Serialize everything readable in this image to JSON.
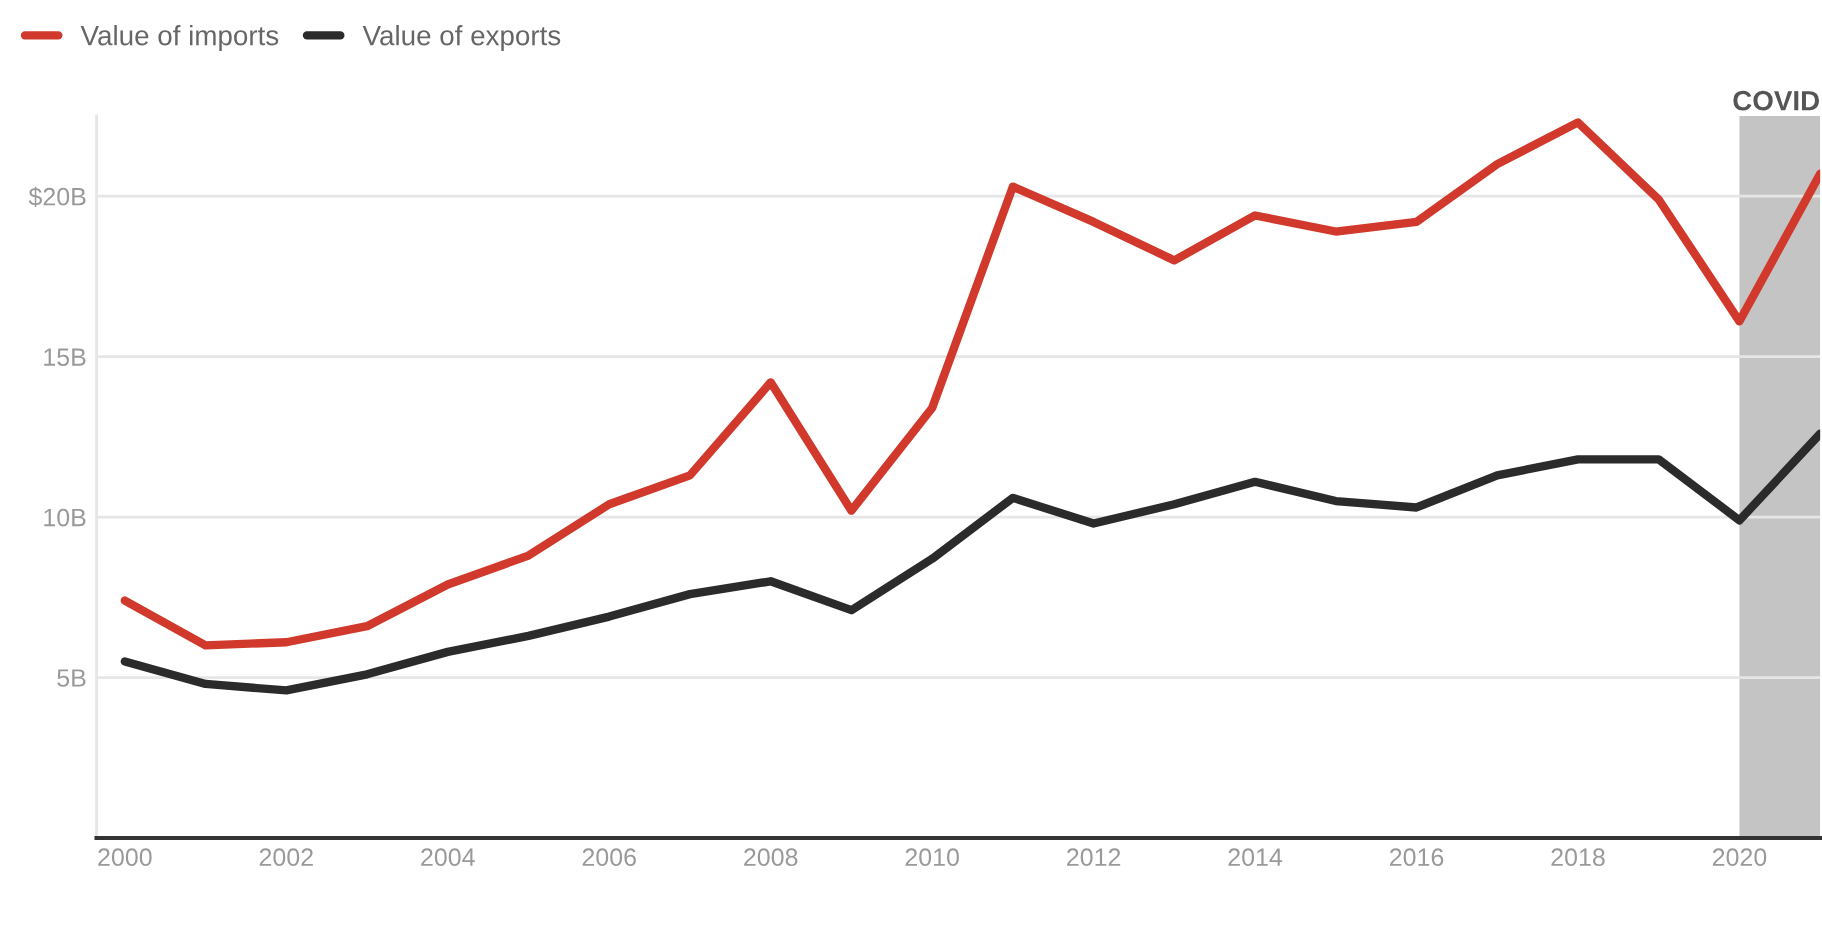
{
  "chart_data": {
    "type": "line",
    "x": [
      2000,
      2001,
      2002,
      2003,
      2004,
      2005,
      2006,
      2007,
      2008,
      2009,
      2010,
      2011,
      2012,
      2013,
      2014,
      2015,
      2016,
      2017,
      2018,
      2019,
      2020,
      2021
    ],
    "series": [
      {
        "name": "Value of imports",
        "color": "#d0392b",
        "values": [
          7.4,
          6.0,
          6.1,
          6.6,
          7.9,
          8.8,
          10.4,
          11.3,
          14.2,
          10.2,
          13.4,
          20.3,
          19.2,
          18.0,
          19.4,
          18.9,
          19.2,
          21.0,
          22.3,
          19.9,
          16.1,
          20.7
        ]
      },
      {
        "name": "Value of exports",
        "color": "#2b2b2b",
        "values": [
          5.5,
          4.8,
          4.6,
          5.1,
          5.8,
          6.3,
          6.9,
          7.6,
          8.0,
          7.1,
          8.7,
          10.6,
          9.8,
          10.4,
          11.1,
          10.5,
          10.3,
          11.3,
          11.8,
          11.8,
          9.9,
          12.6
        ]
      }
    ],
    "xlim": [
      1999.65,
      2021
    ],
    "xticks": [
      2000,
      2002,
      2004,
      2006,
      2008,
      2010,
      2012,
      2014,
      2016,
      2018,
      2020
    ],
    "ylim": [
      0,
      22.5
    ],
    "yticks": [
      {
        "value": 5,
        "label": "5B"
      },
      {
        "value": 10,
        "label": "10B"
      },
      {
        "value": 15,
        "label": "15B"
      },
      {
        "value": 20,
        "label": "$20B"
      }
    ],
    "bands": [
      {
        "axis": "x",
        "from": 2020,
        "to": 2021,
        "label": "COVID",
        "color": "#c4c4c4"
      }
    ],
    "grid": "y",
    "legend": "top left",
    "marker": "none",
    "line_style": "solid"
  }
}
